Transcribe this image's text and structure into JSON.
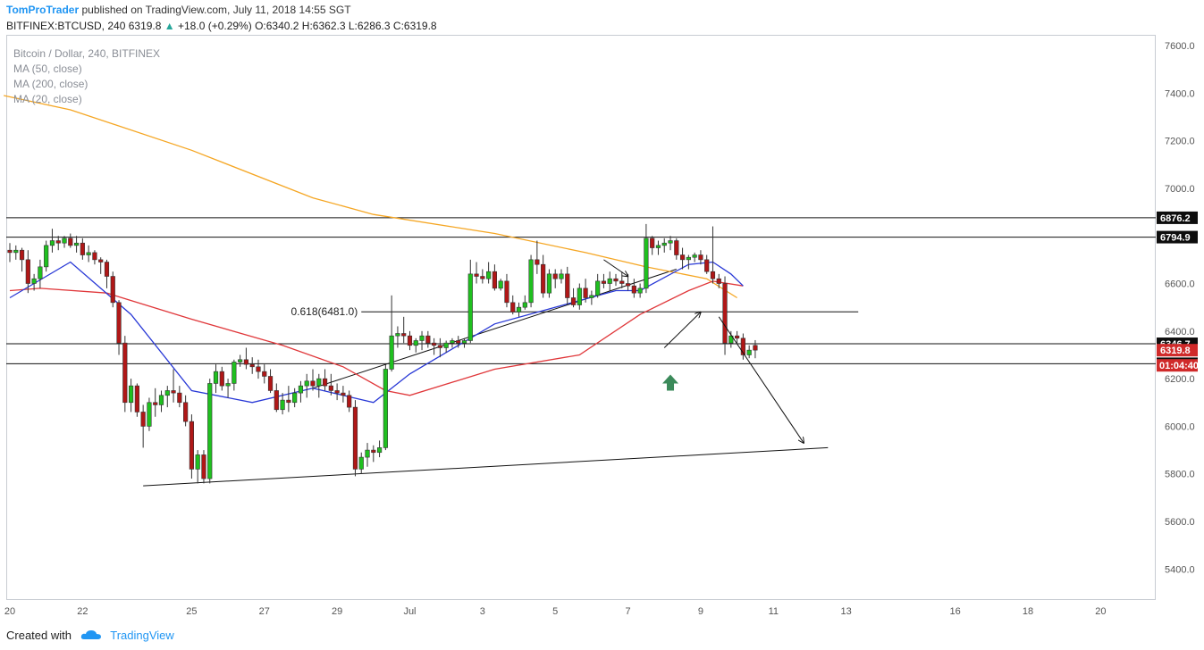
{
  "header": {
    "author": "TomProTrader",
    "published": "published on TradingView.com, July 11, 2018 14:55 SGT",
    "symbol": "BITFINEX:BTCUSD, 240",
    "last": "6319.8",
    "change": "+18.0 (+0.29%)",
    "open_label": "O:",
    "open": "6340.2",
    "high_label": "H:",
    "high": "6362.3",
    "low_label": "L:",
    "low": "6286.3",
    "close_label": "C:",
    "close": "6319.8"
  },
  "legend": {
    "title": "Bitcoin / Dollar, 240, BITFINEX",
    "ma50": "MA (50, close)",
    "ma200": "MA (200, close)",
    "ma20": "MA (20, close)"
  },
  "footer": {
    "created_with": "Created with",
    "brand": "TradingView"
  },
  "colors": {
    "up": "#1fc01f",
    "down": "#b01717",
    "ma20": "#2838d6",
    "ma50": "#e0373a",
    "ma200": "#f5a623",
    "level_tag": "#0d0d0d",
    "price_tag": "#d02a2a",
    "arrow": "#3b8a5a"
  },
  "chart_data": {
    "type": "candlestick",
    "x_tick_labels": [
      "20",
      "22",
      "25",
      "27",
      "29",
      "Jul",
      "3",
      "5",
      "7",
      "9",
      "11",
      "13",
      "16",
      "18",
      "20"
    ],
    "y_ticks": [
      5400,
      5600,
      5800,
      6000,
      6200,
      6400,
      6600,
      6800,
      7000,
      7200,
      7400,
      7600
    ],
    "y_tick_labels": [
      "5400.0",
      "5600.0",
      "5800.0",
      "6000.0",
      "6200.0",
      "6400.0",
      "6600.0",
      "6800.0",
      "7000.0",
      "7200.0",
      "7400.0",
      "7600.0"
    ],
    "ylim": [
      5270,
      7645
    ],
    "candle_start": "Jun 20",
    "candle_interval_hours": 4,
    "candles": [
      [
        6740,
        6770,
        6690,
        6730
      ],
      [
        6730,
        6760,
        6700,
        6740
      ],
      [
        6740,
        6750,
        6650,
        6700
      ],
      [
        6700,
        6740,
        6560,
        6600
      ],
      [
        6600,
        6640,
        6570,
        6620
      ],
      [
        6620,
        6700,
        6580,
        6670
      ],
      [
        6670,
        6780,
        6650,
        6760
      ],
      [
        6760,
        6830,
        6730,
        6780
      ],
      [
        6780,
        6800,
        6740,
        6770
      ],
      [
        6770,
        6800,
        6750,
        6790
      ],
      [
        6790,
        6810,
        6750,
        6760
      ],
      [
        6760,
        6800,
        6730,
        6770
      ],
      [
        6770,
        6790,
        6700,
        6720
      ],
      [
        6720,
        6760,
        6690,
        6730
      ],
      [
        6730,
        6740,
        6680,
        6700
      ],
      [
        6700,
        6710,
        6640,
        6690
      ],
      [
        6690,
        6700,
        6580,
        6630
      ],
      [
        6630,
        6650,
        6500,
        6520
      ],
      [
        6520,
        6530,
        6300,
        6350
      ],
      [
        6350,
        6380,
        6060,
        6100
      ],
      [
        6100,
        6200,
        6060,
        6170
      ],
      [
        6170,
        6180,
        6040,
        6060
      ],
      [
        6060,
        6090,
        5910,
        6000
      ],
      [
        6000,
        6120,
        5980,
        6100
      ],
      [
        6100,
        6160,
        6040,
        6090
      ],
      [
        6090,
        6150,
        6060,
        6130
      ],
      [
        6130,
        6170,
        6080,
        6150
      ],
      [
        6150,
        6240,
        6100,
        6140
      ],
      [
        6140,
        6170,
        6080,
        6100
      ],
      [
        6100,
        6130,
        6000,
        6020
      ],
      [
        6020,
        6050,
        5780,
        5820
      ],
      [
        5820,
        5900,
        5760,
        5880
      ],
      [
        5880,
        5900,
        5760,
        5780
      ],
      [
        5780,
        6200,
        5760,
        6180
      ],
      [
        6180,
        6260,
        6140,
        6230
      ],
      [
        6230,
        6250,
        6150,
        6170
      ],
      [
        6170,
        6200,
        6120,
        6180
      ],
      [
        6180,
        6280,
        6150,
        6270
      ],
      [
        6270,
        6300,
        6250,
        6280
      ],
      [
        6280,
        6330,
        6240,
        6260
      ],
      [
        6260,
        6290,
        6220,
        6250
      ],
      [
        6250,
        6280,
        6200,
        6230
      ],
      [
        6230,
        6260,
        6180,
        6210
      ],
      [
        6210,
        6240,
        6140,
        6150
      ],
      [
        6150,
        6180,
        6060,
        6070
      ],
      [
        6070,
        6140,
        6050,
        6110
      ],
      [
        6110,
        6170,
        6060,
        6100
      ],
      [
        6100,
        6160,
        6080,
        6140
      ],
      [
        6140,
        6190,
        6100,
        6170
      ],
      [
        6170,
        6220,
        6120,
        6190
      ],
      [
        6190,
        6240,
        6150,
        6170
      ],
      [
        6170,
        6220,
        6120,
        6200
      ],
      [
        6200,
        6240,
        6150,
        6170
      ],
      [
        6170,
        6220,
        6130,
        6150
      ],
      [
        6150,
        6180,
        6110,
        6140
      ],
      [
        6140,
        6170,
        6100,
        6130
      ],
      [
        6130,
        6150,
        6060,
        6080
      ],
      [
        6080,
        6110,
        5790,
        5820
      ],
      [
        5820,
        5890,
        5800,
        5870
      ],
      [
        5870,
        5930,
        5830,
        5900
      ],
      [
        5900,
        5920,
        5850,
        5890
      ],
      [
        5890,
        5940,
        5870,
        5910
      ],
      [
        5910,
        6260,
        5900,
        6240
      ],
      [
        6240,
        6550,
        6230,
        6380
      ],
      [
        6380,
        6420,
        6330,
        6390
      ],
      [
        6390,
        6460,
        6350,
        6380
      ],
      [
        6380,
        6400,
        6320,
        6340
      ],
      [
        6340,
        6370,
        6310,
        6360
      ],
      [
        6360,
        6400,
        6320,
        6380
      ],
      [
        6380,
        6400,
        6330,
        6350
      ],
      [
        6350,
        6370,
        6300,
        6340
      ],
      [
        6340,
        6370,
        6290,
        6330
      ],
      [
        6330,
        6360,
        6310,
        6350
      ],
      [
        6350,
        6370,
        6330,
        6360
      ],
      [
        6360,
        6380,
        6330,
        6350
      ],
      [
        6350,
        6370,
        6330,
        6360
      ],
      [
        6360,
        6700,
        6350,
        6640
      ],
      [
        6640,
        6690,
        6600,
        6630
      ],
      [
        6630,
        6660,
        6600,
        6620
      ],
      [
        6620,
        6690,
        6600,
        6650
      ],
      [
        6650,
        6680,
        6570,
        6580
      ],
      [
        6580,
        6620,
        6570,
        6610
      ],
      [
        6610,
        6640,
        6500,
        6520
      ],
      [
        6520,
        6550,
        6470,
        6480
      ],
      [
        6480,
        6520,
        6460,
        6500
      ],
      [
        6500,
        6550,
        6490,
        6520
      ],
      [
        6520,
        6720,
        6500,
        6700
      ],
      [
        6700,
        6780,
        6640,
        6680
      ],
      [
        6680,
        6720,
        6540,
        6560
      ],
      [
        6560,
        6660,
        6540,
        6640
      ],
      [
        6640,
        6660,
        6580,
        6620
      ],
      [
        6620,
        6660,
        6600,
        6640
      ],
      [
        6640,
        6670,
        6510,
        6540
      ],
      [
        6540,
        6580,
        6500,
        6510
      ],
      [
        6510,
        6600,
        6490,
        6580
      ],
      [
        6580,
        6620,
        6520,
        6540
      ],
      [
        6540,
        6570,
        6510,
        6550
      ],
      [
        6550,
        6640,
        6540,
        6610
      ],
      [
        6610,
        6640,
        6580,
        6600
      ],
      [
        6600,
        6650,
        6570,
        6620
      ],
      [
        6620,
        6640,
        6590,
        6610
      ],
      [
        6610,
        6650,
        6580,
        6600
      ],
      [
        6600,
        6640,
        6570,
        6590
      ],
      [
        6590,
        6620,
        6540,
        6560
      ],
      [
        6560,
        6600,
        6540,
        6580
      ],
      [
        6580,
        6850,
        6560,
        6790
      ],
      [
        6790,
        6800,
        6720,
        6750
      ],
      [
        6750,
        6780,
        6720,
        6760
      ],
      [
        6760,
        6790,
        6730,
        6770
      ],
      [
        6770,
        6800,
        6740,
        6780
      ],
      [
        6780,
        6790,
        6700,
        6720
      ],
      [
        6720,
        6750,
        6660,
        6700
      ],
      [
        6700,
        6720,
        6660,
        6710
      ],
      [
        6710,
        6730,
        6690,
        6720
      ],
      [
        6720,
        6740,
        6680,
        6700
      ],
      [
        6700,
        6720,
        6640,
        6650
      ],
      [
        6650,
        6840,
        6600,
        6620
      ],
      [
        6620,
        6640,
        6580,
        6600
      ],
      [
        6600,
        6630,
        6300,
        6350
      ],
      [
        6350,
        6400,
        6330,
        6380
      ],
      [
        6380,
        6400,
        6350,
        6370
      ],
      [
        6370,
        6390,
        6280,
        6300
      ],
      [
        6300,
        6340,
        6286,
        6320
      ],
      [
        6340,
        6362,
        6286,
        6320
      ]
    ],
    "ma20": [
      [
        0,
        6540
      ],
      [
        10,
        6690
      ],
      [
        20,
        6470
      ],
      [
        30,
        6150
      ],
      [
        40,
        6100
      ],
      [
        50,
        6160
      ],
      [
        60,
        6100
      ],
      [
        66,
        6220
      ],
      [
        80,
        6430
      ],
      [
        100,
        6570
      ],
      [
        104,
        6570
      ],
      [
        112,
        6680
      ],
      [
        116,
        6690
      ],
      [
        119,
        6640
      ],
      [
        121,
        6590
      ]
    ],
    "ma50": [
      [
        0,
        6570
      ],
      [
        5,
        6580
      ],
      [
        16,
        6560
      ],
      [
        30,
        6450
      ],
      [
        45,
        6340
      ],
      [
        55,
        6250
      ],
      [
        62,
        6150
      ],
      [
        66,
        6130
      ],
      [
        80,
        6240
      ],
      [
        94,
        6300
      ],
      [
        104,
        6470
      ],
      [
        112,
        6570
      ],
      [
        116,
        6610
      ],
      [
        121,
        6590
      ]
    ],
    "ma200": [
      [
        -1,
        7390
      ],
      [
        10,
        7330
      ],
      [
        30,
        7160
      ],
      [
        50,
        6960
      ],
      [
        60,
        6890
      ],
      [
        80,
        6810
      ],
      [
        95,
        6730
      ],
      [
        105,
        6670
      ],
      [
        115,
        6620
      ],
      [
        120,
        6540
      ]
    ],
    "levels": [
      {
        "value": 6876.2,
        "label": "6876.2"
      },
      {
        "value": 6794.9,
        "label": "6794.9"
      },
      {
        "value": 6346.7,
        "label": "6346.7"
      },
      {
        "value": 6262.7,
        "label": "6262.7"
      }
    ],
    "fib": {
      "value": 6481.0,
      "label": "0.618(6481.0)"
    },
    "last_price": {
      "value": 6319.8,
      "label": "6319.8"
    },
    "countdown": "01:04:40",
    "trendlines": [
      {
        "from": [
          22,
          5750
        ],
        "to": [
          135,
          5910
        ]
      },
      {
        "from": [
          50,
          6160
        ],
        "to": [
          110,
          6660
        ]
      }
    ],
    "arrows": [
      {
        "from": [
          108,
          6330
        ],
        "to": [
          114,
          6480
        ]
      },
      {
        "from": [
          117,
          6460
        ],
        "to": [
          131,
          5930
        ]
      },
      {
        "from": [
          98,
          6700
        ],
        "to": [
          102,
          6630
        ]
      }
    ],
    "signal_arrow": {
      "x": 109,
      "value": 6180
    }
  }
}
